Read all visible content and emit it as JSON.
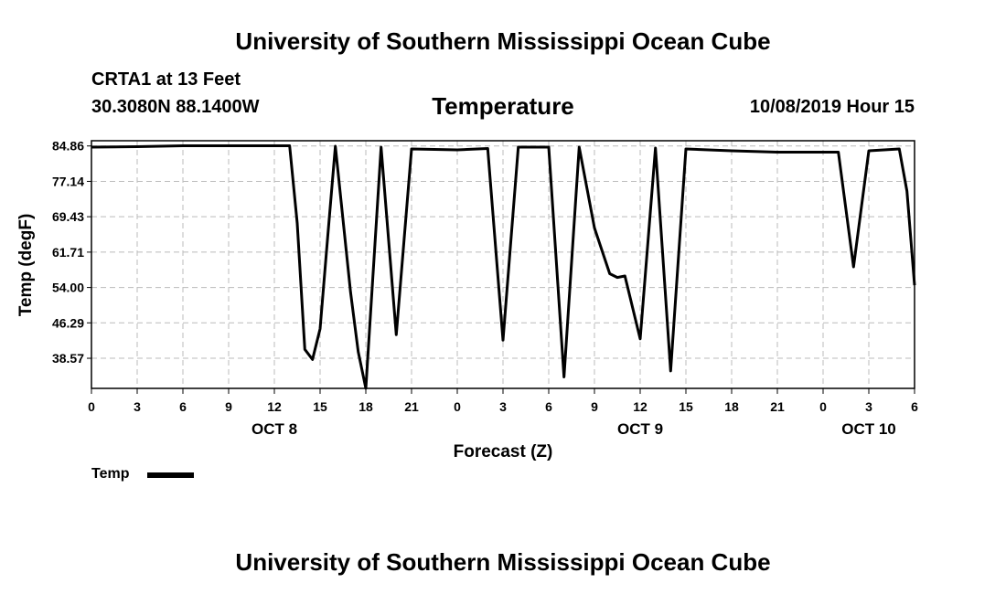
{
  "header": {
    "top_title": "University of Southern Mississippi Ocean Cube",
    "station": "CRTA1 at 13 Feet",
    "coords": "30.3080N 88.1400W",
    "datetime": "10/08/2019 Hour 15"
  },
  "footer": {
    "bottom_title": "University of Southern Mississippi Ocean Cube"
  },
  "chart_data": {
    "type": "line",
    "title": "Temperature",
    "xlabel": "Forecast (Z)",
    "ylabel": "Temp (degF)",
    "ylim": [
      32,
      86
    ],
    "xlim": [
      0,
      54
    ],
    "grid": true,
    "yticks": [
      "84.86",
      "77.14",
      "69.43",
      "61.71",
      "54.00",
      "46.29",
      "38.57"
    ],
    "ytick_values": [
      84.86,
      77.14,
      69.43,
      61.71,
      54.0,
      46.29,
      38.57
    ],
    "xtick_labels": [
      "0",
      "3",
      "6",
      "9",
      "12",
      "15",
      "18",
      "21",
      "0",
      "3",
      "6",
      "9",
      "12",
      "15",
      "18",
      "21",
      "0",
      "3",
      "6"
    ],
    "date_labels": [
      {
        "label": "OCT 8",
        "hour": 12
      },
      {
        "label": "OCT 9",
        "hour": 36
      },
      {
        "label": "OCT 10",
        "hour": 51
      }
    ],
    "legend": [
      {
        "name": "Temp",
        "color": "#000000"
      }
    ],
    "series": [
      {
        "name": "Temp",
        "points": [
          [
            0,
            84.6
          ],
          [
            3,
            84.7
          ],
          [
            6,
            84.9
          ],
          [
            9,
            84.9
          ],
          [
            12,
            84.9
          ],
          [
            13,
            84.9
          ],
          [
            13.5,
            68
          ],
          [
            14,
            40.5
          ],
          [
            14.5,
            38.3
          ],
          [
            15,
            45
          ],
          [
            15.5,
            65
          ],
          [
            16,
            84.8
          ],
          [
            17,
            53
          ],
          [
            17.5,
            40
          ],
          [
            18,
            32
          ],
          [
            19,
            84.6
          ],
          [
            20,
            43.7
          ],
          [
            21,
            84.2
          ],
          [
            24,
            84
          ],
          [
            26,
            84.3
          ],
          [
            27,
            42.5
          ],
          [
            28,
            84.6
          ],
          [
            30,
            84.6
          ],
          [
            31,
            34.5
          ],
          [
            32,
            84.6
          ],
          [
            33,
            67
          ],
          [
            34,
            57
          ],
          [
            34.5,
            56.2
          ],
          [
            35,
            56.5
          ],
          [
            36,
            42.8
          ],
          [
            37,
            84.4
          ],
          [
            38,
            35.8
          ],
          [
            39,
            84.2
          ],
          [
            42,
            83.8
          ],
          [
            45,
            83.5
          ],
          [
            49,
            83.5
          ],
          [
            50,
            58.5
          ],
          [
            51,
            83.8
          ],
          [
            53,
            84.2
          ],
          [
            53.5,
            75
          ],
          [
            54,
            54.5
          ]
        ]
      }
    ]
  }
}
